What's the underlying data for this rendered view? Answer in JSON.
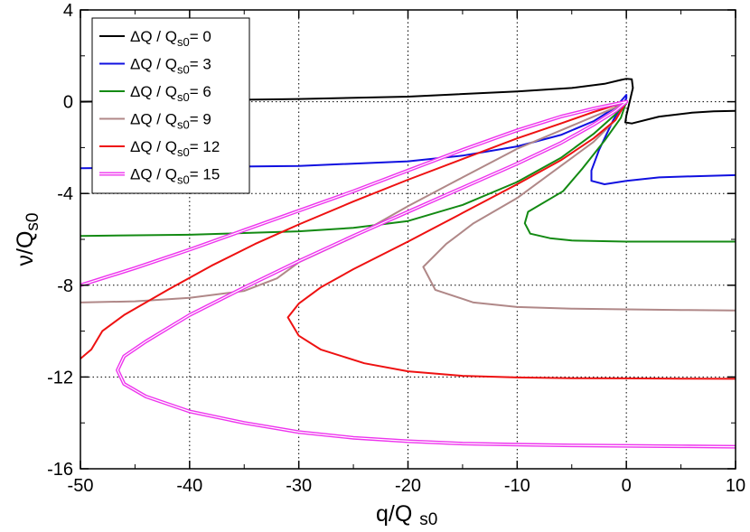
{
  "chart_data": {
    "type": "line",
    "title": "",
    "xlabel": {
      "main": "q/Q",
      "sub": "s0"
    },
    "ylabel": {
      "main": "ν/Q",
      "sub": "s0"
    },
    "xlim": [
      -50,
      10
    ],
    "ylim": [
      -16,
      4
    ],
    "xticks": [
      -50,
      -40,
      -30,
      -20,
      -10,
      0,
      10
    ],
    "yticks": [
      -16,
      -12,
      -8,
      -4,
      0,
      4
    ],
    "xtick_labels": [
      "-50",
      "-40",
      "-30",
      "-20",
      "-10",
      "0",
      "10"
    ],
    "ytick_labels": [
      "-16",
      "-12",
      "-8",
      "-4",
      "0",
      "4"
    ],
    "grid": true,
    "legend_position": "top-left",
    "series": [
      {
        "name": "ΔQ / Qs0= 0",
        "legend": {
          "pre": "ΔQ / Q",
          "sub": "s0",
          "post": "= 0"
        },
        "color": "#000000",
        "double": false,
        "points": [
          [
            -50,
            0.0
          ],
          [
            -40,
            0.05
          ],
          [
            -30,
            0.12
          ],
          [
            -20,
            0.22
          ],
          [
            -10,
            0.45
          ],
          [
            -5,
            0.6
          ],
          [
            -2,
            0.78
          ],
          [
            -0.5,
            0.95
          ],
          [
            0,
            1.0
          ],
          [
            0.5,
            0.98
          ],
          [
            0.6,
            0.6
          ],
          [
            0.3,
            0.0
          ],
          [
            0.0,
            -0.6
          ],
          [
            -0.1,
            -0.9
          ],
          [
            0.5,
            -0.95
          ],
          [
            3,
            -0.65
          ],
          [
            6,
            -0.48
          ],
          [
            8,
            -0.42
          ],
          [
            10,
            -0.4
          ]
        ]
      },
      {
        "name": "ΔQ / Qs0= 3",
        "legend": {
          "pre": "ΔQ / Q",
          "sub": "s0",
          "post": "= 3"
        },
        "color": "#1010e0",
        "double": false,
        "points": [
          [
            -50,
            -2.9
          ],
          [
            -40,
            -2.85
          ],
          [
            -30,
            -2.8
          ],
          [
            -20,
            -2.6
          ],
          [
            -15,
            -2.35
          ],
          [
            -10,
            -1.95
          ],
          [
            -6,
            -1.45
          ],
          [
            -3,
            -0.85
          ],
          [
            -1,
            -0.25
          ],
          [
            0,
            0.3
          ],
          [
            0,
            0.15
          ],
          [
            -1.2,
            -0.8
          ],
          [
            -2.5,
            -2.1
          ],
          [
            -3.2,
            -3.0
          ],
          [
            -3.2,
            -3.45
          ],
          [
            -2,
            -3.6
          ],
          [
            0,
            -3.45
          ],
          [
            3,
            -3.3
          ],
          [
            6,
            -3.25
          ],
          [
            10,
            -3.2
          ]
        ]
      },
      {
        "name": "ΔQ / Qs0= 6",
        "legend": {
          "pre": "ΔQ / Q",
          "sub": "s0",
          "post": "= 6"
        },
        "color": "#138a13",
        "double": false,
        "points": [
          [
            -50,
            -5.85
          ],
          [
            -40,
            -5.8
          ],
          [
            -30,
            -5.65
          ],
          [
            -25,
            -5.5
          ],
          [
            -20,
            -5.2
          ],
          [
            -15,
            -4.5
          ],
          [
            -10,
            -3.5
          ],
          [
            -6,
            -2.45
          ],
          [
            -3,
            -1.4
          ],
          [
            -1,
            -0.55
          ],
          [
            0,
            0.0
          ],
          [
            -0.5,
            -0.7
          ],
          [
            -2,
            -1.7
          ],
          [
            -4,
            -2.9
          ],
          [
            -5.8,
            -3.9
          ],
          [
            -9,
            -4.8
          ],
          [
            -9.3,
            -5.3
          ],
          [
            -8.8,
            -5.75
          ],
          [
            -7,
            -5.95
          ],
          [
            -5,
            -6.05
          ],
          [
            0,
            -6.1
          ],
          [
            5,
            -6.1
          ],
          [
            10,
            -6.1
          ]
        ]
      },
      {
        "name": "ΔQ / Qs0= 9",
        "legend": {
          "pre": "ΔQ / Q",
          "sub": "s0",
          "post": "= 9"
        },
        "color": "#b08888",
        "double": false,
        "points": [
          [
            -50,
            -8.75
          ],
          [
            -45,
            -8.7
          ],
          [
            -40,
            -8.55
          ],
          [
            -35,
            -8.25
          ],
          [
            -32,
            -7.7
          ],
          [
            -30,
            -7.0
          ],
          [
            -25,
            -5.9
          ],
          [
            -20,
            -4.55
          ],
          [
            -15,
            -3.3
          ],
          [
            -10,
            -2.05
          ],
          [
            -6,
            -1.25
          ],
          [
            -3,
            -0.65
          ],
          [
            -1,
            -0.25
          ],
          [
            0,
            0.0
          ],
          [
            -1,
            -0.8
          ],
          [
            -3,
            -1.75
          ],
          [
            -6,
            -2.8
          ],
          [
            -10,
            -4.2
          ],
          [
            -14,
            -5.3
          ],
          [
            -16.5,
            -6.2
          ],
          [
            -18.6,
            -7.2
          ],
          [
            -17.5,
            -8.2
          ],
          [
            -14,
            -8.75
          ],
          [
            -10,
            -8.95
          ],
          [
            -5,
            -9.02
          ],
          [
            0,
            -9.05
          ],
          [
            5,
            -9.08
          ],
          [
            10,
            -9.1
          ]
        ]
      },
      {
        "name": "ΔQ / Qs0= 12",
        "legend": {
          "pre": "ΔQ / Q",
          "sub": "s0",
          "post": "= 12"
        },
        "color": "#ee1111",
        "double": false,
        "points": [
          [
            -50,
            -11.2
          ],
          [
            -49,
            -10.8
          ],
          [
            -48,
            -10.0
          ],
          [
            -46,
            -9.3
          ],
          [
            -42,
            -8.2
          ],
          [
            -38,
            -7.15
          ],
          [
            -34,
            -6.2
          ],
          [
            -30,
            -5.35
          ],
          [
            -25,
            -4.35
          ],
          [
            -20,
            -3.4
          ],
          [
            -15,
            -2.5
          ],
          [
            -10,
            -1.6
          ],
          [
            -6,
            -0.95
          ],
          [
            -3,
            -0.45
          ],
          [
            -1,
            -0.15
          ],
          [
            0,
            0.0
          ],
          [
            -1,
            -0.8
          ],
          [
            -3,
            -1.6
          ],
          [
            -6,
            -2.55
          ],
          [
            -10,
            -3.6
          ],
          [
            -15,
            -4.85
          ],
          [
            -20,
            -6.1
          ],
          [
            -25,
            -7.3
          ],
          [
            -28,
            -8.1
          ],
          [
            -30,
            -8.8
          ],
          [
            -31,
            -9.4
          ],
          [
            -30,
            -10.2
          ],
          [
            -28,
            -10.8
          ],
          [
            -24,
            -11.4
          ],
          [
            -20,
            -11.75
          ],
          [
            -15,
            -11.95
          ],
          [
            -10,
            -12.02
          ],
          [
            -5,
            -12.05
          ],
          [
            0,
            -12.06
          ],
          [
            5,
            -12.07
          ],
          [
            10,
            -12.08
          ]
        ]
      },
      {
        "name": "ΔQ / Qs0= 15",
        "legend": {
          "pre": "ΔQ / Q",
          "sub": "s0",
          "post": "= 15"
        },
        "color": "#ee33ee",
        "double": true,
        "points": [
          [
            -50,
            -8.0
          ],
          [
            -45,
            -7.25
          ],
          [
            -40,
            -6.45
          ],
          [
            -35,
            -5.6
          ],
          [
            -30,
            -4.75
          ],
          [
            -25,
            -3.9
          ],
          [
            -20,
            -3.0
          ],
          [
            -15,
            -2.1
          ],
          [
            -10,
            -1.25
          ],
          [
            -6,
            -0.65
          ],
          [
            -3,
            -0.3
          ],
          [
            0,
            0.0
          ],
          [
            -1,
            -0.4
          ],
          [
            -3,
            -1.0
          ],
          [
            -6,
            -1.8
          ],
          [
            -10,
            -2.7
          ],
          [
            -15,
            -3.75
          ],
          [
            -20,
            -4.8
          ],
          [
            -25,
            -5.85
          ],
          [
            -30,
            -6.95
          ],
          [
            -35,
            -8.1
          ],
          [
            -40,
            -9.3
          ],
          [
            -44,
            -10.45
          ],
          [
            -46,
            -11.1
          ],
          [
            -46.6,
            -11.7
          ],
          [
            -46,
            -12.3
          ],
          [
            -44,
            -12.85
          ],
          [
            -40,
            -13.5
          ],
          [
            -35,
            -14.0
          ],
          [
            -30,
            -14.4
          ],
          [
            -25,
            -14.65
          ],
          [
            -20,
            -14.8
          ],
          [
            -15,
            -14.9
          ],
          [
            -10,
            -14.95
          ],
          [
            -5,
            -14.98
          ],
          [
            0,
            -15.0
          ],
          [
            5,
            -15.02
          ],
          [
            10,
            -15.04
          ]
        ]
      }
    ]
  }
}
